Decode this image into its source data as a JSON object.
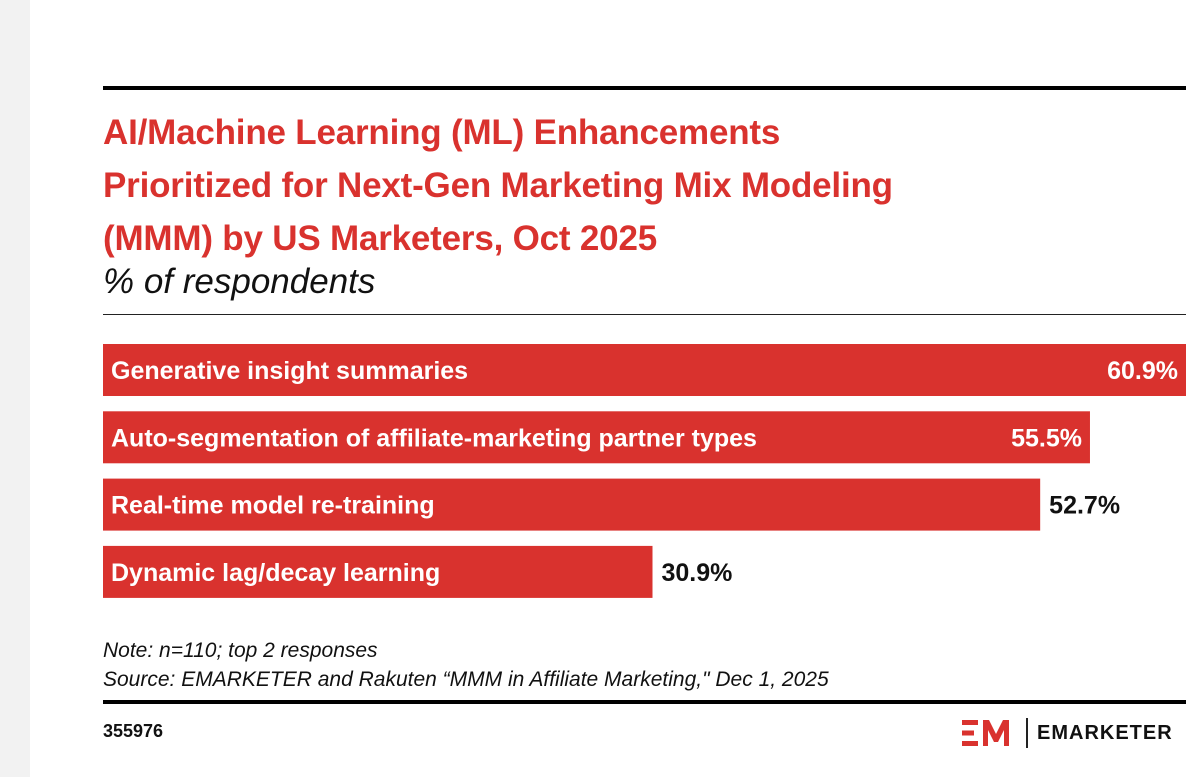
{
  "colors": {
    "accent": "#d9322e",
    "bar_label_inside": "#ffffff",
    "value_label_outside": "#111111",
    "rule": "#000000"
  },
  "chart_data": {
    "type": "bar",
    "orientation": "horizontal",
    "title_lines": [
      "AI/Machine Learning (ML) Enhancements",
      "Prioritized for Next-Gen Marketing Mix Modeling",
      "(MMM) by US Marketers, Oct 2025"
    ],
    "subtitle": "% of respondents",
    "categories": [
      "Generative insight summaries",
      "Auto-segmentation of affiliate-marketing partner types",
      "Real-time model re-training",
      "Dynamic lag/decay learning"
    ],
    "values": [
      60.9,
      55.5,
      52.7,
      30.9
    ],
    "value_labels": [
      "60.9%",
      "55.5%",
      "52.7%",
      "30.9%"
    ],
    "xlim": [
      0,
      60.9
    ],
    "grid": false,
    "legend": "none"
  },
  "footer": {
    "note": "Note: n=110; top 2 responses",
    "source": "Source: EMARKETER and Rakuten “MMM in Affiliate Marketing,\" Dec 1, 2025",
    "chart_id": "355976",
    "brand_name": "EMARKETER"
  },
  "icons": {
    "brand_logo": "emarketer-em-logo"
  }
}
